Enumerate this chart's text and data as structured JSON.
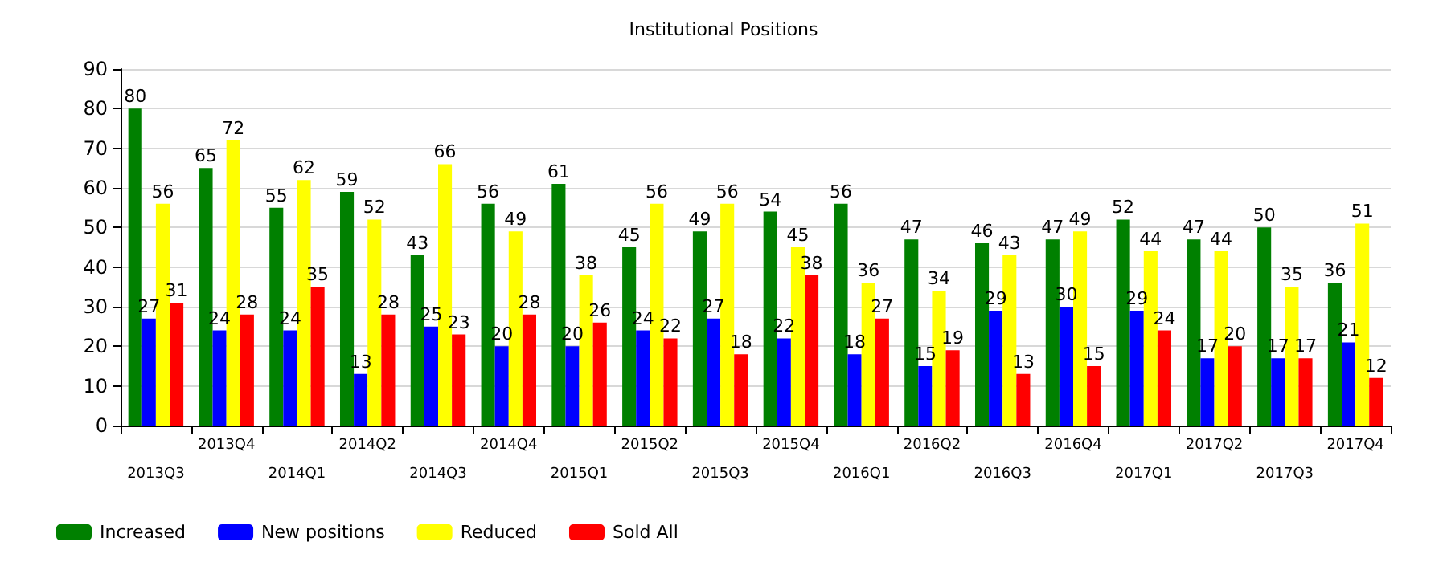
{
  "chart_data": {
    "type": "bar",
    "title": "Institutional Positions",
    "categories": [
      "2013Q3",
      "2013Q4",
      "2014Q1",
      "2014Q2",
      "2014Q3",
      "2014Q4",
      "2015Q1",
      "2015Q2",
      "2015Q3",
      "2015Q4",
      "2016Q1",
      "2016Q2",
      "2016Q3",
      "2016Q4",
      "2017Q1",
      "2017Q2",
      "2017Q3",
      "2017Q4"
    ],
    "series": [
      {
        "name": "Increased",
        "color": "#008000",
        "values": [
          80,
          65,
          55,
          59,
          43,
          56,
          61,
          45,
          49,
          54,
          56,
          47,
          46,
          47,
          52,
          47,
          50,
          36
        ]
      },
      {
        "name": "New positions",
        "color": "#0000ff",
        "values": [
          27,
          24,
          24,
          13,
          25,
          20,
          20,
          24,
          27,
          22,
          18,
          15,
          29,
          30,
          29,
          17,
          17,
          21
        ]
      },
      {
        "name": "Reduced",
        "color": "#ffff00",
        "values": [
          56,
          72,
          62,
          52,
          66,
          49,
          38,
          56,
          56,
          45,
          36,
          34,
          43,
          49,
          44,
          44,
          35,
          51
        ]
      },
      {
        "name": "Sold All",
        "color": "#ff0000",
        "values": [
          31,
          28,
          35,
          28,
          23,
          28,
          26,
          22,
          18,
          38,
          27,
          19,
          13,
          15,
          24,
          20,
          17,
          12
        ]
      }
    ],
    "ylim": [
      0,
      90
    ],
    "yticks": [
      0,
      10,
      20,
      30,
      40,
      50,
      60,
      70,
      80,
      90
    ],
    "grid": "y",
    "legend": "bottom left",
    "data_labels": true
  }
}
